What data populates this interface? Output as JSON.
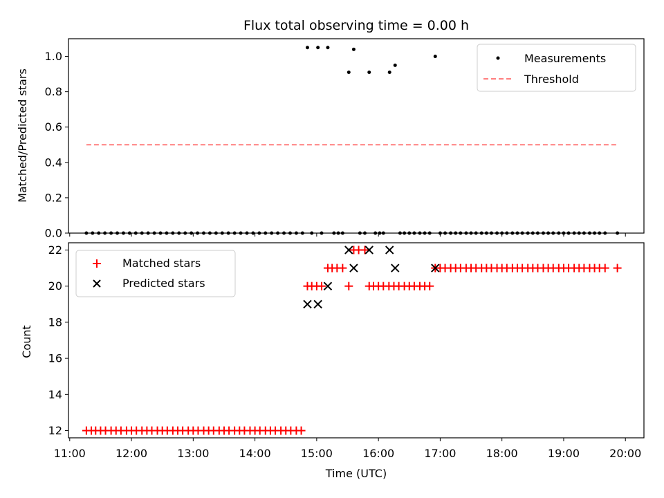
{
  "chart_data": [
    {
      "type": "scatter",
      "title": "Flux total observing time = 0.00 h",
      "xlabel": "",
      "ylabel": "Matched/Predicted stars",
      "x_unit": "hours UTC",
      "xlim": [
        10.98,
        20.3
      ],
      "ylim": [
        0.0,
        1.1
      ],
      "yticks": [
        "0.0",
        "0.2",
        "0.4",
        "0.6",
        "0.8",
        "1.0"
      ],
      "legend_position": "top-right",
      "series": [
        {
          "name": "Measurements",
          "style": "dot",
          "color": "#000000",
          "x": [
            11.27,
            11.37,
            11.47,
            11.57,
            11.67,
            11.77,
            11.87,
            11.97,
            12.07,
            12.17,
            12.27,
            12.37,
            12.47,
            12.57,
            12.67,
            12.77,
            12.87,
            12.97,
            13.07,
            13.17,
            13.27,
            13.37,
            13.47,
            13.57,
            13.67,
            13.77,
            13.87,
            13.97,
            14.07,
            14.17,
            14.27,
            14.37,
            14.47,
            14.57,
            14.67,
            14.77,
            14.85,
            14.92,
            15.02,
            15.08,
            15.18,
            15.28,
            15.35,
            15.42,
            15.52,
            15.6,
            15.7,
            15.78,
            15.85,
            15.95,
            16.02,
            16.08,
            16.18,
            16.27,
            16.35,
            16.42,
            16.5,
            16.58,
            16.67,
            16.75,
            16.83,
            16.92,
            17.0,
            17.08,
            17.17,
            17.25,
            17.33,
            17.42,
            17.5,
            17.58,
            17.67,
            17.75,
            17.83,
            17.92,
            18.0,
            18.08,
            18.17,
            18.25,
            18.33,
            18.42,
            18.5,
            18.58,
            18.67,
            18.75,
            18.83,
            18.92,
            19.0,
            19.08,
            19.17,
            19.25,
            19.33,
            19.42,
            19.5,
            19.58,
            19.67,
            19.87
          ],
          "y": [
            0,
            0,
            0,
            0,
            0,
            0,
            0,
            0,
            0,
            0,
            0,
            0,
            0,
            0,
            0,
            0,
            0,
            0,
            0,
            0,
            0,
            0,
            0,
            0,
            0,
            0,
            0,
            0,
            0,
            0,
            0,
            0,
            0,
            0,
            0,
            0,
            1.05,
            0,
            1.05,
            0,
            1.05,
            0,
            0,
            0,
            0.91,
            1.04,
            0,
            0,
            0.91,
            0,
            0,
            0,
            0.91,
            0.95,
            0,
            0,
            0,
            0,
            0,
            0,
            0,
            1.0,
            0,
            0,
            0,
            0,
            0,
            0,
            0,
            0,
            0,
            0,
            0,
            0,
            0,
            0,
            0,
            0,
            0,
            0,
            0,
            0,
            0,
            0,
            0,
            0,
            0,
            0,
            0,
            0,
            0,
            0,
            0,
            0,
            0,
            0
          ]
        },
        {
          "name": "Threshold",
          "style": "dashed-line",
          "color": "#ff7f7f",
          "x": [
            11.27,
            19.87
          ],
          "y": [
            0.5,
            0.5
          ]
        }
      ]
    },
    {
      "type": "scatter",
      "title": "",
      "xlabel": "Time (UTC)",
      "ylabel": "Count",
      "x_unit": "hours UTC",
      "xlim": [
        10.98,
        20.3
      ],
      "ylim": [
        11.6,
        22.4
      ],
      "yticks": [
        "12",
        "14",
        "16",
        "18",
        "20",
        "22"
      ],
      "xticks": [
        {
          "value": 11,
          "label": "11:00"
        },
        {
          "value": 12,
          "label": "12:00"
        },
        {
          "value": 13,
          "label": "13:00"
        },
        {
          "value": 14,
          "label": "14:00"
        },
        {
          "value": 15,
          "label": "15:00"
        },
        {
          "value": 16,
          "label": "16:00"
        },
        {
          "value": 17,
          "label": "17:00"
        },
        {
          "value": 18,
          "label": "18:00"
        },
        {
          "value": 19,
          "label": "19:00"
        },
        {
          "value": 20,
          "label": "20:00"
        }
      ],
      "legend_position": "top-left",
      "series": [
        {
          "name": "Matched stars",
          "style": "plus",
          "color": "#ff0000",
          "x": [
            11.27,
            11.35,
            11.42,
            11.5,
            11.58,
            11.67,
            11.75,
            11.83,
            11.92,
            12.0,
            12.08,
            12.17,
            12.25,
            12.33,
            12.42,
            12.5,
            12.58,
            12.67,
            12.75,
            12.83,
            12.92,
            13.0,
            13.08,
            13.17,
            13.25,
            13.33,
            13.42,
            13.5,
            13.58,
            13.67,
            13.75,
            13.83,
            13.92,
            14.0,
            14.08,
            14.17,
            14.25,
            14.33,
            14.42,
            14.5,
            14.58,
            14.67,
            14.75,
            14.85,
            14.92,
            15.0,
            15.08,
            15.18,
            15.25,
            15.33,
            15.42,
            15.52,
            15.6,
            15.68,
            15.78,
            15.85,
            15.92,
            16.0,
            16.08,
            16.17,
            16.25,
            16.33,
            16.42,
            16.5,
            16.58,
            16.67,
            16.75,
            16.83,
            16.92,
            17.0,
            17.08,
            17.17,
            17.25,
            17.33,
            17.42,
            17.5,
            17.58,
            17.67,
            17.75,
            17.83,
            17.92,
            18.0,
            18.08,
            18.17,
            18.25,
            18.33,
            18.42,
            18.5,
            18.58,
            18.67,
            18.75,
            18.83,
            18.92,
            19.0,
            19.08,
            19.17,
            19.25,
            19.33,
            19.42,
            19.5,
            19.58,
            19.67,
            19.87
          ],
          "y": [
            12,
            12,
            12,
            12,
            12,
            12,
            12,
            12,
            12,
            12,
            12,
            12,
            12,
            12,
            12,
            12,
            12,
            12,
            12,
            12,
            12,
            12,
            12,
            12,
            12,
            12,
            12,
            12,
            12,
            12,
            12,
            12,
            12,
            12,
            12,
            12,
            12,
            12,
            12,
            12,
            12,
            12,
            12,
            20,
            20,
            20,
            20,
            21,
            21,
            21,
            21,
            20,
            22,
            22,
            22,
            20,
            20,
            20,
            20,
            20,
            20,
            20,
            20,
            20,
            20,
            20,
            20,
            20,
            21,
            21,
            21,
            21,
            21,
            21,
            21,
            21,
            21,
            21,
            21,
            21,
            21,
            21,
            21,
            21,
            21,
            21,
            21,
            21,
            21,
            21,
            21,
            21,
            21,
            21,
            21,
            21,
            21,
            21,
            21,
            21,
            21,
            21,
            21
          ]
        },
        {
          "name": "Predicted stars",
          "style": "x",
          "color": "#000000",
          "x": [
            14.85,
            15.02,
            15.18,
            15.52,
            15.6,
            15.85,
            16.18,
            16.27,
            16.92
          ],
          "y": [
            19,
            19,
            20,
            22,
            21,
            22,
            22,
            21,
            21
          ]
        }
      ]
    }
  ]
}
